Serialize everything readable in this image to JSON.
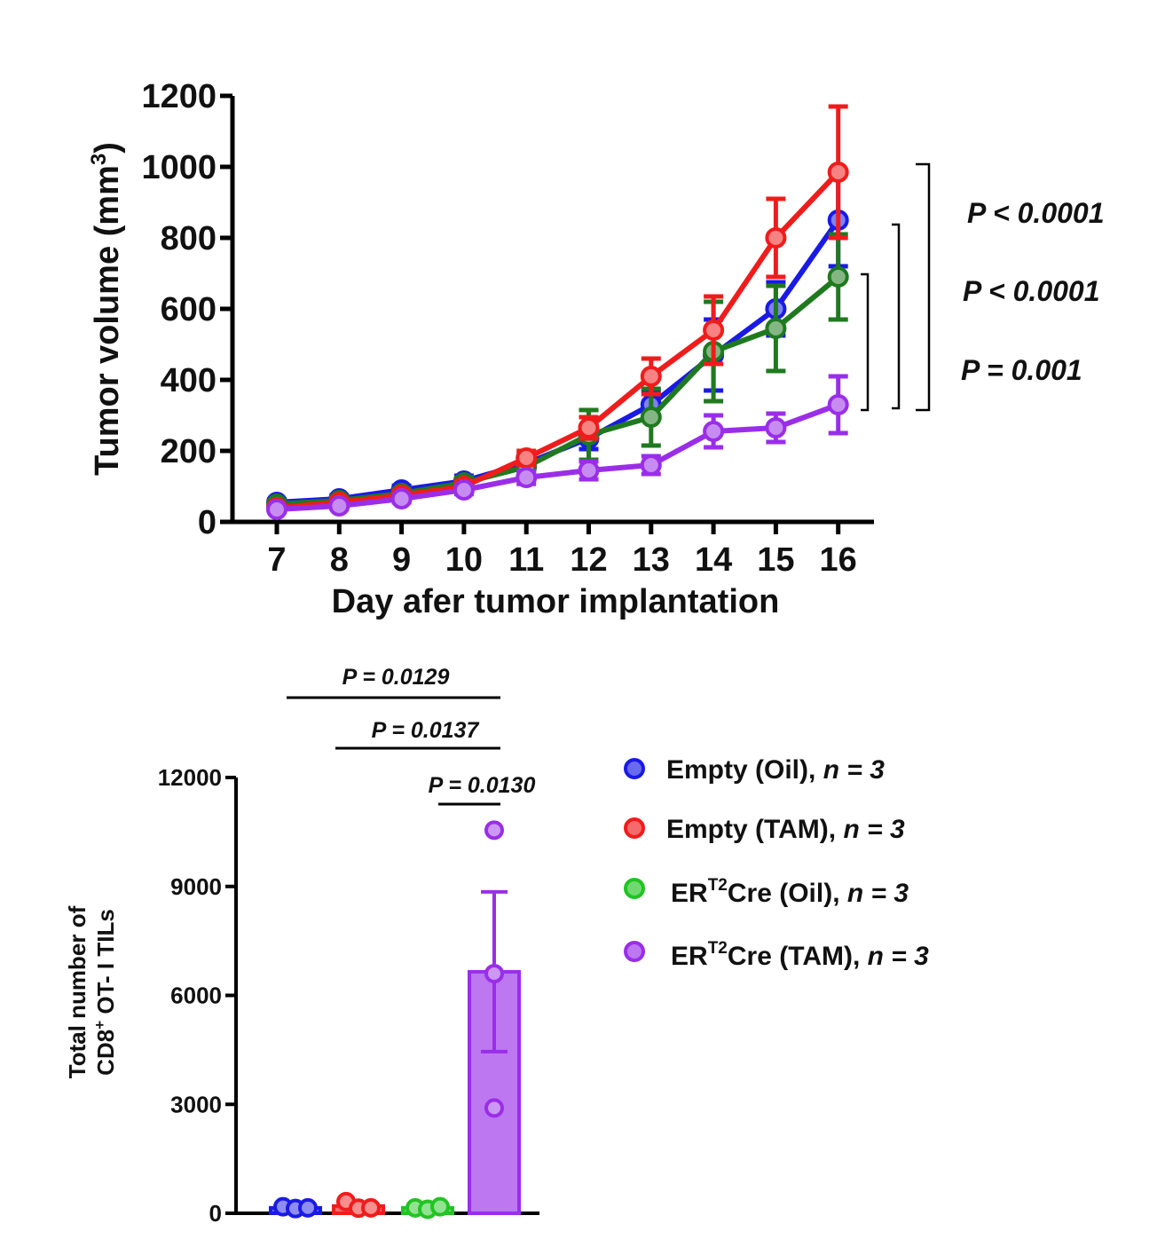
{
  "chart_data": [
    {
      "type": "line",
      "ylabel": "Tumor volume",
      "ylabel_unit": "(mm",
      "ylabel_sup": "3",
      "ylabel_close": ")",
      "xlabel": "Day afer tumor implantation",
      "x": [
        7,
        8,
        9,
        10,
        11,
        12,
        13,
        14,
        15,
        16
      ],
      "ylim": [
        0,
        1200
      ],
      "yticks": [
        0,
        200,
        400,
        600,
        800,
        1000,
        1200
      ],
      "series": [
        {
          "name": "Empty (Oil)",
          "color": "#1a1ae6",
          "values": [
            55,
            65,
            90,
            115,
            165,
            235,
            330,
            470,
            600,
            850
          ],
          "errors": [
            8,
            10,
            12,
            15,
            20,
            30,
            40,
            100,
            75,
            130
          ]
        },
        {
          "name": "ERT2Cre (Oil)",
          "color": "#1f7a1f",
          "values": [
            50,
            60,
            80,
            110,
            155,
            245,
            295,
            480,
            545,
            690
          ],
          "errors": [
            8,
            10,
            12,
            15,
            20,
            70,
            80,
            140,
            120,
            120
          ]
        },
        {
          "name": "Empty (TAM)",
          "color": "#f01c1c",
          "values": [
            40,
            55,
            75,
            100,
            180,
            265,
            410,
            540,
            800,
            985
          ],
          "errors": [
            8,
            10,
            12,
            15,
            20,
            30,
            50,
            95,
            110,
            185
          ]
        },
        {
          "name": "ERT2Cre (TAM)",
          "color": "#9a2ee8",
          "values": [
            35,
            45,
            65,
            90,
            125,
            145,
            160,
            255,
            265,
            330
          ],
          "errors": [
            6,
            8,
            10,
            12,
            18,
            25,
            25,
            45,
            40,
            80
          ]
        }
      ],
      "significance": [
        {
          "label": "P < 0.0001"
        },
        {
          "label": "P < 0.0001"
        },
        {
          "label": "P = 0.001"
        }
      ]
    },
    {
      "type": "bar",
      "ylabel_line1": "Total number of",
      "ylabel_line2_a": "CD8",
      "ylabel_line2_sup": "+",
      "ylabel_line2_b": " OT- I TILs",
      "ylim": [
        0,
        12000
      ],
      "yticks": [
        0,
        3000,
        6000,
        9000,
        12000
      ],
      "categories": [
        "Empty (Oil)",
        "Empty (TAM)",
        "ERT2Cre (Oil)",
        "ERT2Cre (TAM)"
      ],
      "colors": [
        "#1a1ae6",
        "#f01c1c",
        "#22c422",
        "#9a2ee8"
      ],
      "values": [
        150,
        200,
        150,
        6650
      ],
      "errors": [
        20,
        60,
        20,
        2200
      ],
      "points": [
        [
          180,
          130,
          150
        ],
        [
          320,
          140,
          150
        ],
        [
          150,
          110,
          180
        ],
        [
          10550,
          6600,
          2900
        ]
      ],
      "significance": [
        {
          "label": "P = 0.0129"
        },
        {
          "label": "P = 0.0137"
        },
        {
          "label": "P = 0.0130"
        }
      ]
    }
  ],
  "legend": {
    "items": [
      {
        "pre": "Empty  (Oil), ",
        "sup": "",
        "post": "",
        "n": "n = 3",
        "color": "#1a1ae6"
      },
      {
        "pre": "Empty (TAM), ",
        "sup": "",
        "post": "",
        "n": "n = 3",
        "color": "#f01c1c"
      },
      {
        "pre": "ER",
        "sup": "T2",
        "post": "Cre (Oil), ",
        "n": "n = 3",
        "color": "#22c422"
      },
      {
        "pre": "ER",
        "sup": "T2",
        "post": "Cre (TAM), ",
        "n": "n = 3",
        "color": "#9a2ee8"
      }
    ]
  }
}
